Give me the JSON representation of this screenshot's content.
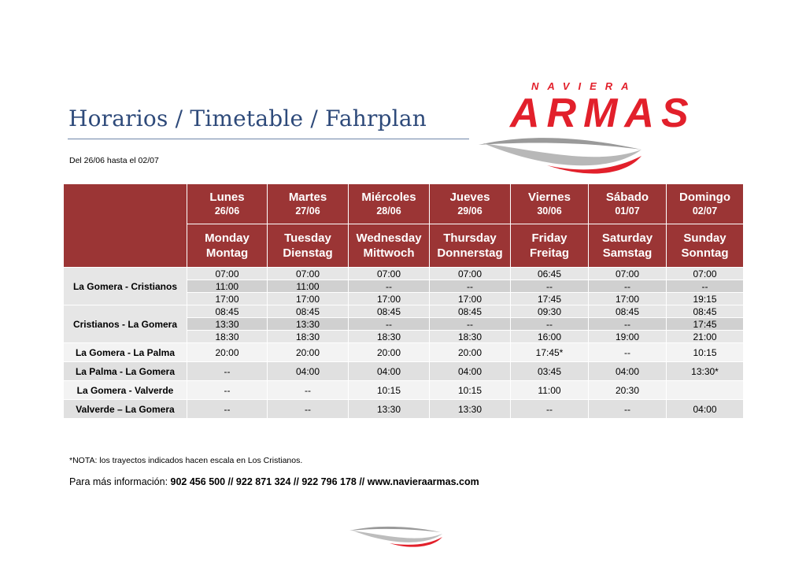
{
  "header": {
    "title": "Horarios / Timetable / Fahrplan",
    "date_range": "Del  26/06 hasta el 02/07"
  },
  "logo": {
    "top_text": "NAVIERA",
    "main_text": "ARMAS",
    "brand_color": "#e2202b"
  },
  "days": [
    {
      "es": "Lunes",
      "date": "26/06",
      "en": "Monday",
      "de": "Montag"
    },
    {
      "es": "Martes",
      "date": "27/06",
      "en": "Tuesday",
      "de": "Dienstag"
    },
    {
      "es": "Miércoles",
      "date": "28/06",
      "en": "Wednesday",
      "de": "Mittwoch"
    },
    {
      "es": "Jueves",
      "date": "29/06",
      "en": "Thursday",
      "de": "Donnerstag"
    },
    {
      "es": "Viernes",
      "date": "30/06",
      "en": "Friday",
      "de": "Freitag"
    },
    {
      "es": "Sábado",
      "date": "01/07",
      "en": "Saturday",
      "de": "Samstag"
    },
    {
      "es": "Domingo",
      "date": "02/07",
      "en": "Sunday",
      "de": "Sonntag"
    }
  ],
  "routes": [
    {
      "name": "La Gomera - Cristianos",
      "rows": [
        [
          "07:00",
          "07:00",
          "07:00",
          "07:00",
          "06:45",
          "07:00",
          "07:00"
        ],
        [
          "11:00",
          "11:00",
          "--",
          "--",
          "--",
          "--",
          "--"
        ],
        [
          "17:00",
          "17:00",
          "17:00",
          "17:00",
          "17:45",
          "17:00",
          "19:15"
        ]
      ]
    },
    {
      "name": "Cristianos - La Gomera",
      "rows": [
        [
          "08:45",
          "08:45",
          "08:45",
          "08:45",
          "09:30",
          "08:45",
          "08:45"
        ],
        [
          "13:30",
          "13:30",
          "--",
          "--",
          "--",
          "--",
          "17:45"
        ],
        [
          "18:30",
          "18:30",
          "18:30",
          "18:30",
          "16:00",
          "19:00",
          "21:00"
        ]
      ]
    },
    {
      "name": "La Gomera - La Palma",
      "rows": [
        [
          "20:00",
          "20:00",
          "20:00",
          "20:00",
          "17:45*",
          "--",
          "10:15"
        ]
      ]
    },
    {
      "name": "La Palma - La Gomera",
      "rows": [
        [
          "--",
          "04:00",
          "04:00",
          "04:00",
          "03:45",
          "04:00",
          "13:30*"
        ]
      ]
    },
    {
      "name": "La Gomera - Valverde",
      "rows": [
        [
          "--",
          "--",
          "10:15",
          "10:15",
          "11:00",
          "20:30",
          ""
        ]
      ]
    },
    {
      "name": "Valverde – La Gomera",
      "rows": [
        [
          "--",
          "--",
          "13:30",
          "13:30",
          "--",
          "--",
          "04:00"
        ]
      ]
    }
  ],
  "footer": {
    "note": "*NOTA: los trayectos indicados hacen escala en Los Cristianos.",
    "info_label": "Para más información: ",
    "info_contacts": "902 456 500 // 922 871 324 // 922 796 178 // www.navieraarmas.com"
  }
}
